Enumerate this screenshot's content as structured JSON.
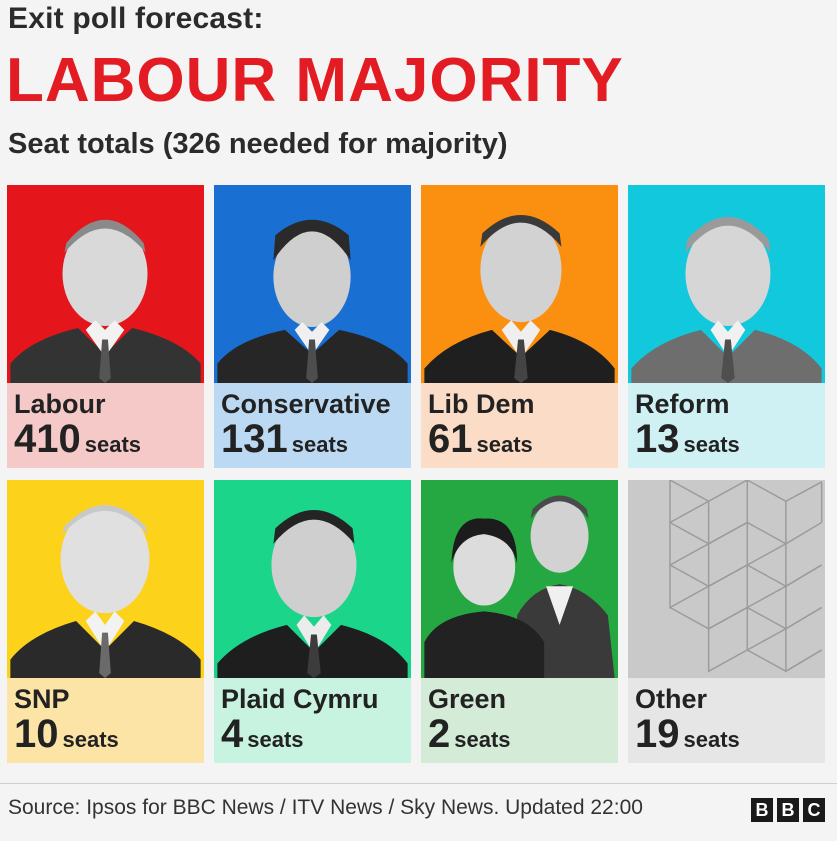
{
  "header": {
    "kicker": "Exit poll forecast:",
    "headline": "LABOUR MAJORITY",
    "subtitle": "Seat totals (326 needed for majority)"
  },
  "parties": [
    {
      "name": "Labour",
      "seats": "410",
      "unit": "seats",
      "photo_bg": "#e4161c",
      "info_bg": "#f6c9c9",
      "photo": "person-photo"
    },
    {
      "name": "Conservative",
      "seats": "131",
      "unit": "seats",
      "photo_bg": "#1a6fd3",
      "info_bg": "#bcd9f3",
      "photo": "person-photo"
    },
    {
      "name": "Lib Dem",
      "seats": "61",
      "unit": "seats",
      "photo_bg": "#fb8f10",
      "info_bg": "#fbdcc6",
      "photo": "person-photo"
    },
    {
      "name": "Reform",
      "seats": "13",
      "unit": "seats",
      "photo_bg": "#12c8dc",
      "info_bg": "#cff1f4",
      "photo": "person-photo"
    },
    {
      "name": "SNP",
      "seats": "10",
      "unit": "seats",
      "photo_bg": "#fdd21a",
      "info_bg": "#fce4a6",
      "photo": "person-photo"
    },
    {
      "name": "Plaid Cymru",
      "seats": "4",
      "unit": "seats",
      "photo_bg": "#1bd58b",
      "info_bg": "#c8f3e0",
      "photo": "person-photo"
    },
    {
      "name": "Green",
      "seats": "2",
      "unit": "seats",
      "photo_bg": "#25a842",
      "info_bg": "#d4ecd7",
      "photo": "two-people-photo"
    },
    {
      "name": "Other",
      "seats": "19",
      "unit": "seats",
      "photo_bg": "#c9c9c9",
      "info_bg": "#e6e6e6",
      "photo": "triangle-pattern"
    }
  ],
  "footer": {
    "source": "Source: Ipsos for BBC News / ITV News / Sky News. Updated 22:00",
    "logo_letters": [
      "B",
      "B",
      "C"
    ]
  }
}
